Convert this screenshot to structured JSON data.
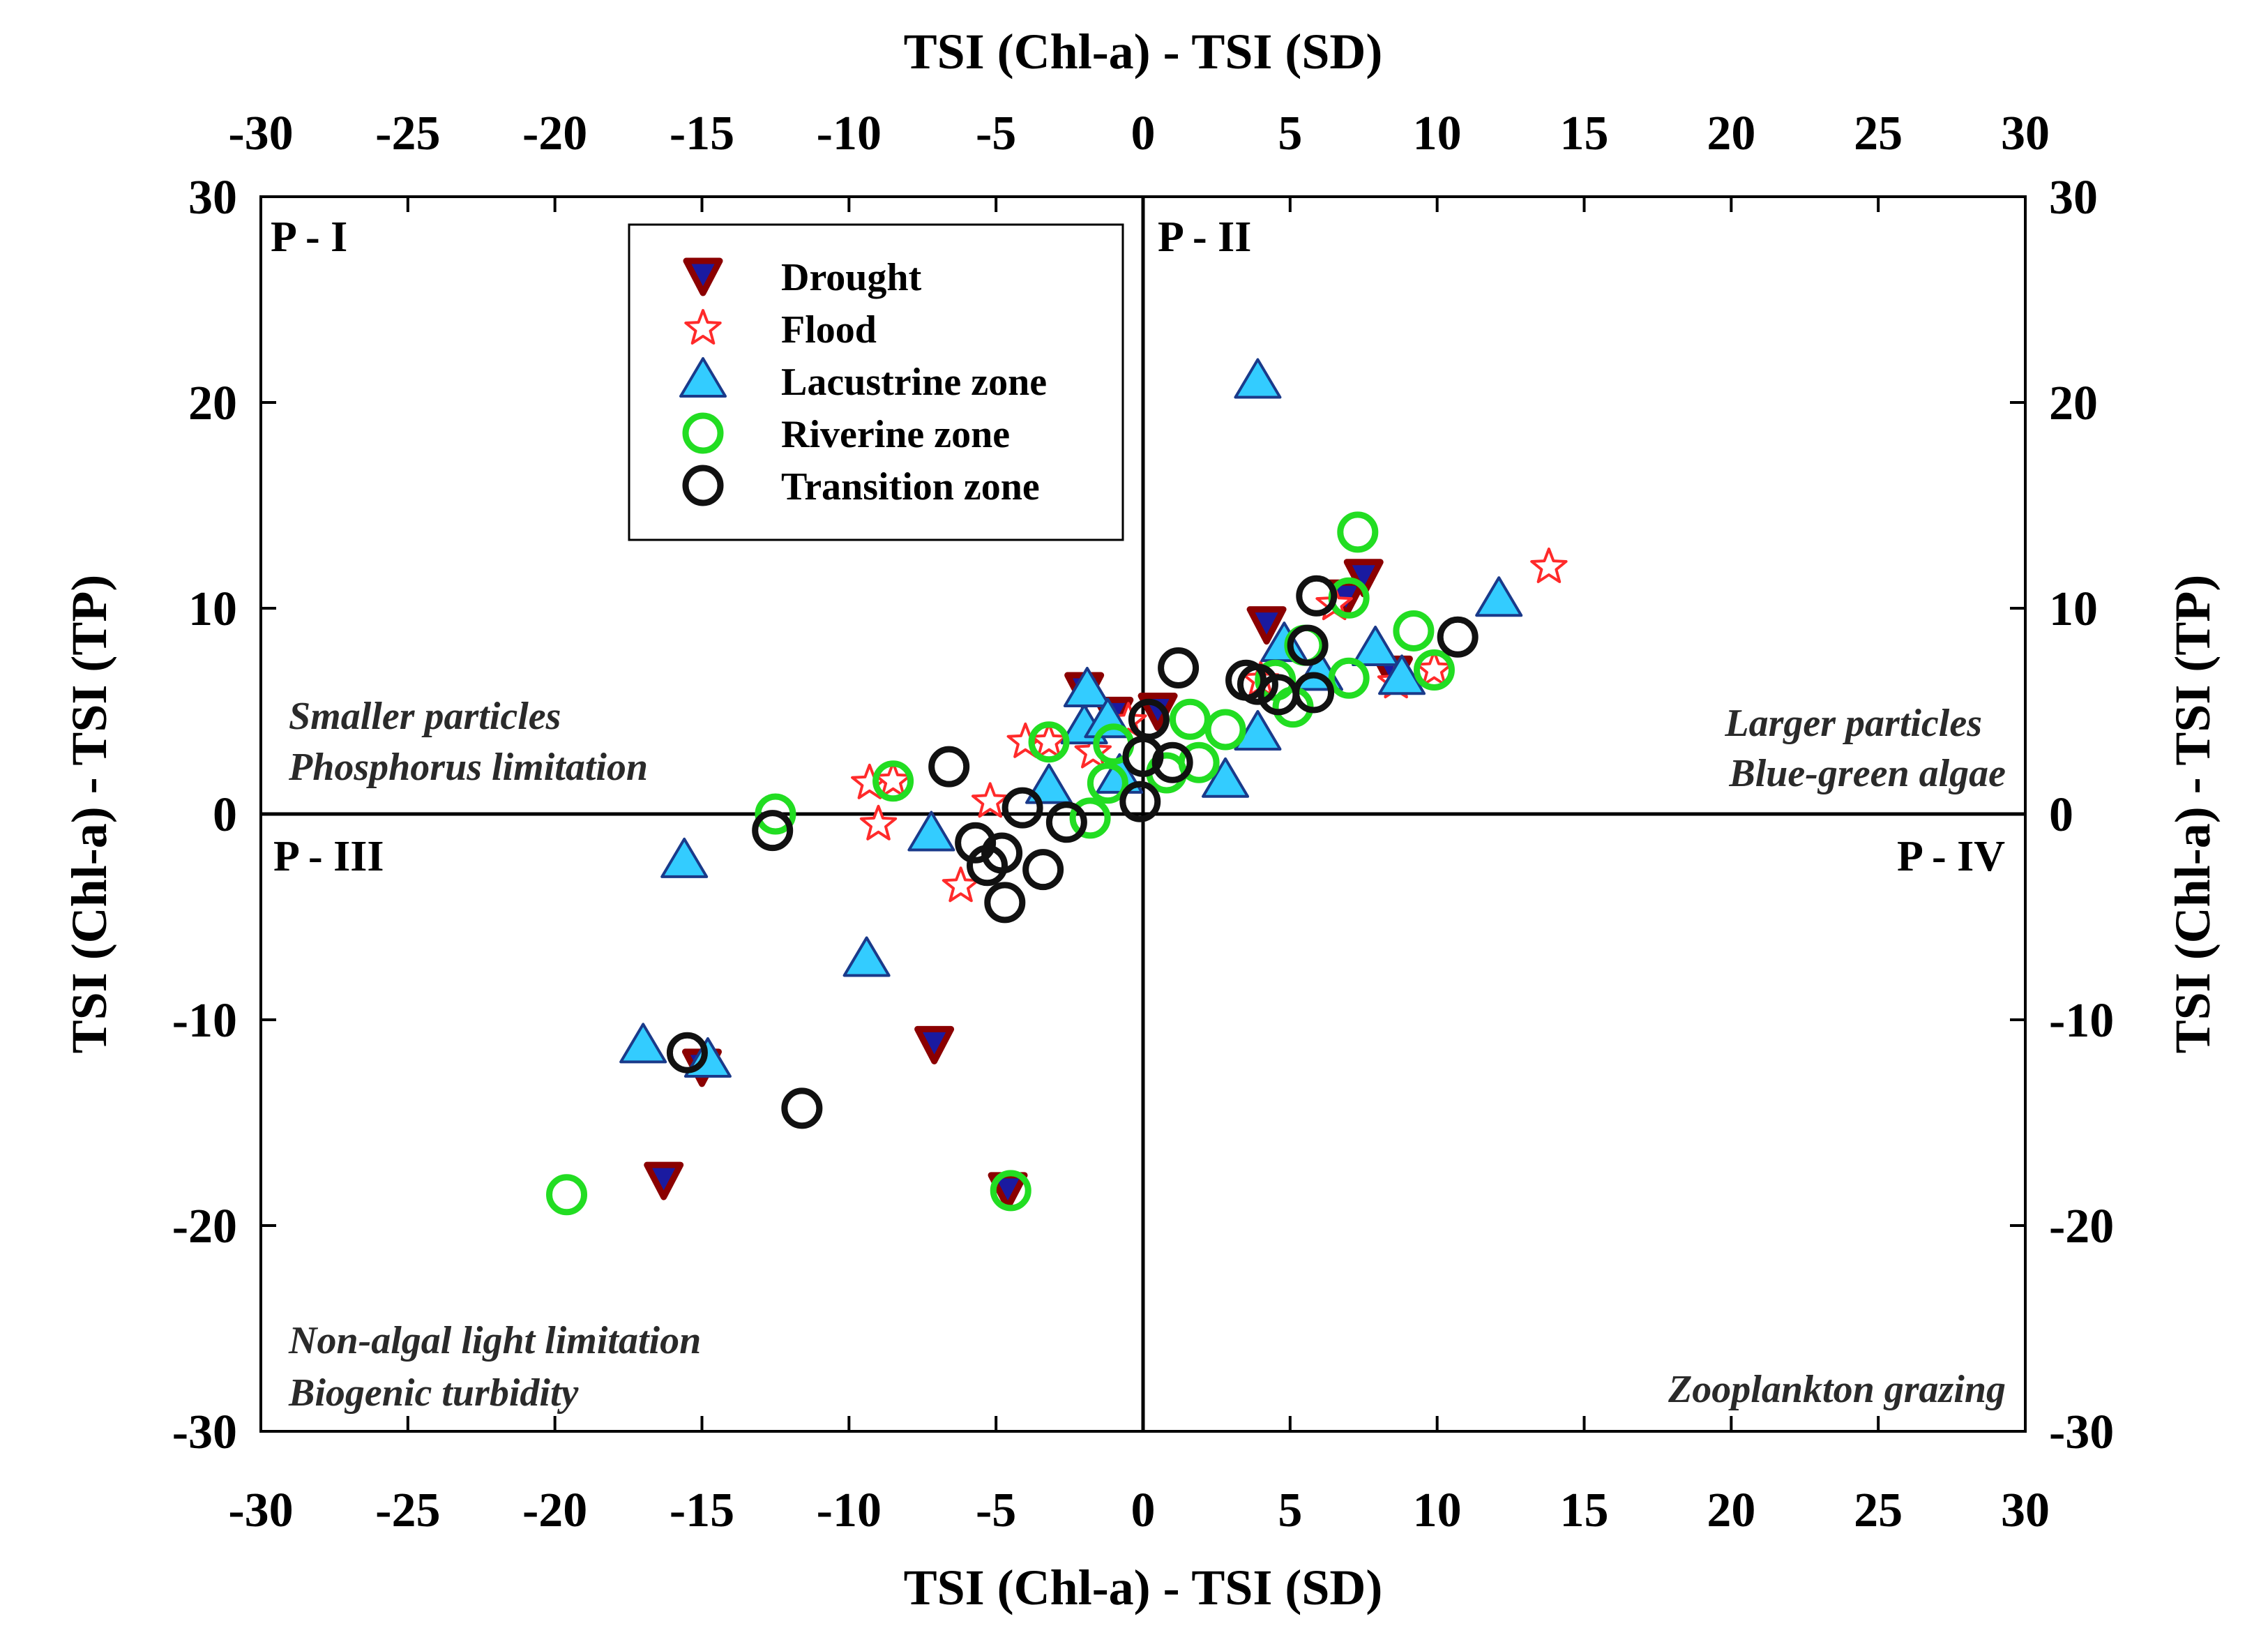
{
  "chart_data": {
    "type": "scatter",
    "xlabel_top": "TSI (Chl-a) - TSI (SD)",
    "xlabel_bottom": "TSI (Chl-a) - TSI (SD)",
    "ylabel_left": "TSI (Chl-a) - TSI (TP)",
    "ylabel_right": "TSI (Chl-a) - TSI (TP)",
    "xlim": [
      -30,
      30
    ],
    "ylim": [
      -30,
      30
    ],
    "xticks": [
      -30,
      -25,
      -20,
      -15,
      -10,
      -5,
      0,
      5,
      10,
      15,
      20,
      25,
      30
    ],
    "yticks": [
      -30,
      -20,
      -10,
      0,
      10,
      20,
      30
    ],
    "quadrants": {
      "p1": "P - I",
      "p2": "P - II",
      "p3": "P - III",
      "p4": "P - IV"
    },
    "annotations": {
      "upper_left": [
        "Smaller particles",
        "Phosphorus limitation"
      ],
      "upper_right": [
        "Larger particles",
        "Blue-green algae"
      ],
      "lower_left": [
        "Non-algal light limitation",
        "Biogenic turbidity"
      ],
      "lower_right": [
        "Zooplankton grazing"
      ]
    },
    "series": [
      {
        "name": "Drought",
        "marker": "triangle-down",
        "fill": "#1a1aa0",
        "stroke": "#8b0000",
        "points": [
          [
            -16.3,
            -17.8
          ],
          [
            -15,
            -12.3
          ],
          [
            -7.1,
            -11.2
          ],
          [
            -4.6,
            -18.3
          ],
          [
            -2,
            6
          ],
          [
            -1,
            4.8
          ],
          [
            0.5,
            5
          ],
          [
            4.2,
            9.2
          ],
          [
            6.9,
            10.5
          ],
          [
            7.5,
            11.5
          ],
          [
            8.5,
            6.8
          ]
        ]
      },
      {
        "name": "Flood",
        "marker": "star",
        "fill": "#ffffff",
        "stroke": "#ff2a2a",
        "points": [
          [
            -9.3,
            1.5
          ],
          [
            -9,
            -0.5
          ],
          [
            -8.5,
            1.6
          ],
          [
            -6.2,
            -3.5
          ],
          [
            -5.2,
            0.6
          ],
          [
            -4,
            3.5
          ],
          [
            -3.2,
            3.5
          ],
          [
            -1.7,
            3
          ],
          [
            -0.5,
            4.5
          ],
          [
            4,
            6.5
          ],
          [
            6.5,
            10.2
          ],
          [
            8.6,
            6.4
          ],
          [
            9.9,
            7
          ],
          [
            13.8,
            12
          ]
        ]
      },
      {
        "name": "Lacustrine zone",
        "marker": "triangle-up",
        "fill": "#33ccff",
        "stroke": "#1a3a8a",
        "points": [
          [
            -17,
            -11.3
          ],
          [
            -15.6,
            -2.3
          ],
          [
            -14.8,
            -12
          ],
          [
            -9.4,
            -7.1
          ],
          [
            -7.2,
            -1
          ],
          [
            -3.2,
            1.3
          ],
          [
            -2,
            4.2
          ],
          [
            -1.9,
            6
          ],
          [
            -1.2,
            4.5
          ],
          [
            -0.8,
            1.8
          ],
          [
            2.8,
            1.6
          ],
          [
            3.9,
            3.9
          ],
          [
            3.9,
            21
          ],
          [
            4.8,
            8.2
          ],
          [
            6,
            6.8
          ],
          [
            7.9,
            8
          ],
          [
            8.8,
            6.6
          ],
          [
            12.1,
            10.4
          ]
        ]
      },
      {
        "name": "Riverine zone",
        "marker": "circle",
        "fill": "none",
        "stroke": "#22dd22",
        "points": [
          [
            -19.6,
            -18.5
          ],
          [
            -12.5,
            0
          ],
          [
            -8.5,
            1.6
          ],
          [
            -4.5,
            -18.3
          ],
          [
            -3.2,
            3.5
          ],
          [
            -1.8,
            -0.2
          ],
          [
            -1.2,
            1.5
          ],
          [
            -1,
            3.4
          ],
          [
            0.8,
            2
          ],
          [
            1.6,
            4.6
          ],
          [
            1.9,
            2.5
          ],
          [
            2.8,
            4.1
          ],
          [
            4.5,
            6.5
          ],
          [
            5.1,
            5.2
          ],
          [
            5.5,
            8.2
          ],
          [
            7,
            6.6
          ],
          [
            7,
            10.5
          ],
          [
            7.3,
            13.7
          ],
          [
            9.2,
            8.9
          ],
          [
            9.9,
            7
          ]
        ]
      },
      {
        "name": "Transition zone",
        "marker": "circle",
        "fill": "none",
        "stroke": "#111111",
        "points": [
          [
            -15.5,
            -11.6
          ],
          [
            -12.6,
            -0.8
          ],
          [
            -11.6,
            -14.3
          ],
          [
            -6.6,
            2.3
          ],
          [
            -5.7,
            -1.4
          ],
          [
            -5.3,
            -2.5
          ],
          [
            -4.8,
            -1.9
          ],
          [
            -4.7,
            -4.3
          ],
          [
            -4.1,
            0.3
          ],
          [
            -3.4,
            -2.7
          ],
          [
            -2.6,
            -0.4
          ],
          [
            -0.1,
            0.6
          ],
          [
            0,
            2.8
          ],
          [
            0.2,
            4.6
          ],
          [
            1,
            2.5
          ],
          [
            1.2,
            7.1
          ],
          [
            3.5,
            6.5
          ],
          [
            3.9,
            6.3
          ],
          [
            4.6,
            5.8
          ],
          [
            5.6,
            8.2
          ],
          [
            5.8,
            5.9
          ],
          [
            5.9,
            10.6
          ],
          [
            10.7,
            8.6
          ]
        ]
      }
    ]
  }
}
